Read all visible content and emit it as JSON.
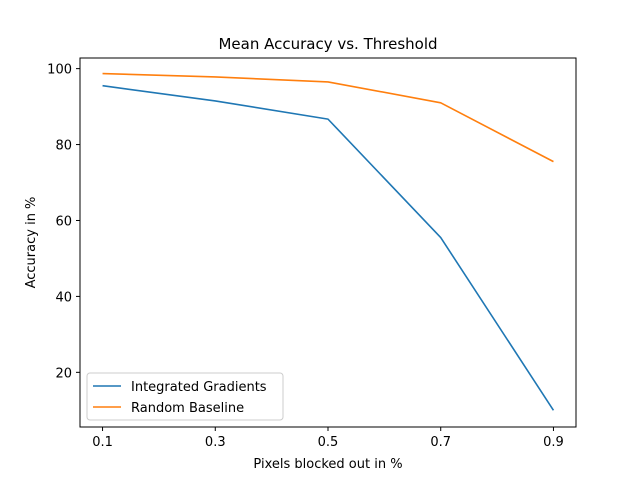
{
  "chart_data": {
    "type": "line",
    "title": "Mean Accuracy vs. Threshold",
    "xlabel": "Pixels blocked out in %",
    "ylabel": "Accuracy in %",
    "x": [
      0.1,
      0.3,
      0.5,
      0.7,
      0.9
    ],
    "xticks": [
      "0.1",
      "0.3",
      "0.5",
      "0.7",
      "0.9"
    ],
    "yticks": [
      "20",
      "40",
      "60",
      "80",
      "100"
    ],
    "xlim": [
      0.06,
      0.94
    ],
    "ylim": [
      5.6,
      102.8
    ],
    "grid": false,
    "legend_position": "lower-left",
    "series": [
      {
        "name": "Integrated Gradients",
        "color": "#1f77b4",
        "values": [
          95.5,
          91.5,
          86.7,
          55.5,
          10.0
        ]
      },
      {
        "name": "Random Baseline",
        "color": "#ff7f0e",
        "values": [
          98.7,
          97.8,
          96.5,
          91.0,
          75.5
        ]
      }
    ]
  }
}
